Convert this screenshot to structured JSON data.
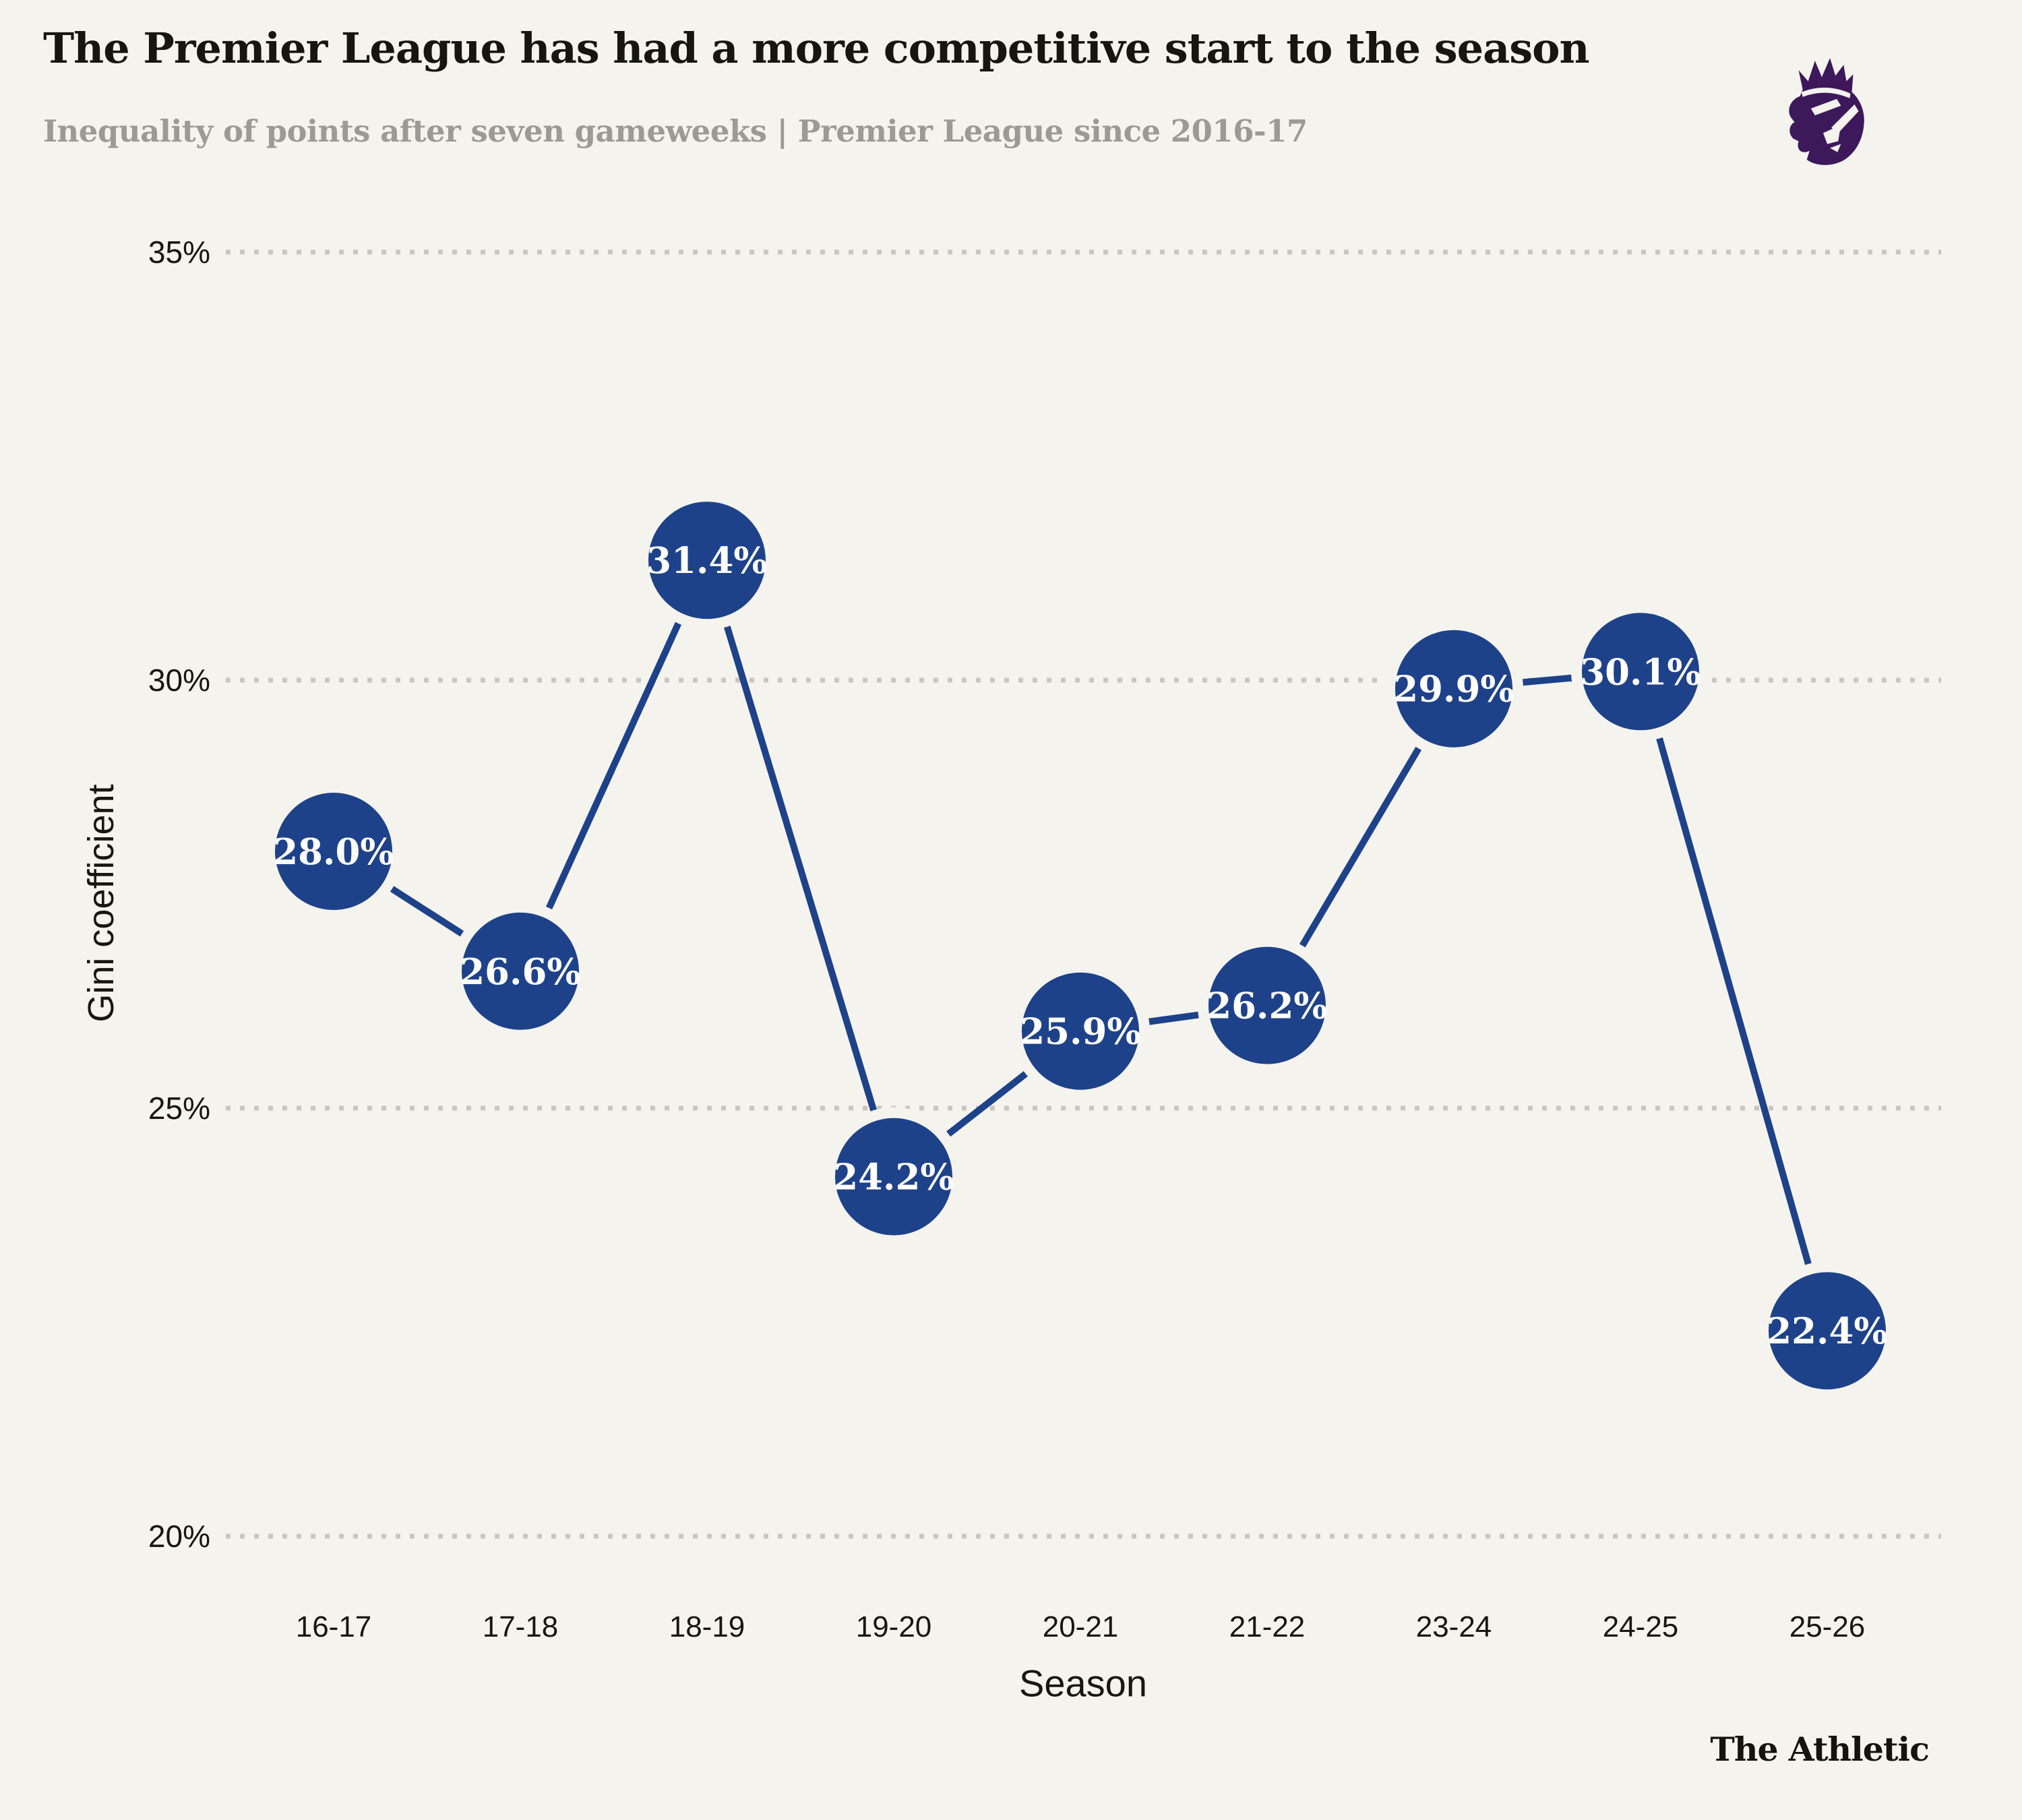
{
  "header": {
    "title": "The Premier League has had a more competitive start to the season",
    "subtitle": "Inequality of points after seven gameweeks | Premier League since 2016-17"
  },
  "branding": {
    "wordmark": "The Athletic",
    "logo_name": "premier-league-lion"
  },
  "colors": {
    "background": "#f4f3ee",
    "accent_blue": "#1e4289",
    "gridline": "#c8c6bf",
    "axis_text": "#17160f",
    "point_label_text": "#ffffff",
    "title_text": "#16150f",
    "subtitle_text": "#9b9a93",
    "pl_purple": "#3d195b"
  },
  "chart_data": {
    "type": "line",
    "title": "The Premier League has had a more competitive start to the season",
    "subtitle": "Inequality of points after seven gameweeks | Premier League since 2016-17",
    "categories": [
      "16-17",
      "17-18",
      "18-19",
      "19-20",
      "20-21",
      "21-22",
      "23-24",
      "24-25",
      "25-26"
    ],
    "values": [
      28.0,
      26.6,
      31.4,
      24.2,
      25.9,
      26.2,
      29.9,
      30.1,
      22.4
    ],
    "point_labels": [
      "28.0%",
      "26.6%",
      "31.4%",
      "24.2%",
      "25.9%",
      "26.2%",
      "29.9%",
      "30.1%",
      "22.4%"
    ],
    "xlabel": "Season",
    "ylabel": "Gini coefficient",
    "yticks": [
      {
        "value": 35,
        "label": "35%"
      },
      {
        "value": 30,
        "label": "30%"
      },
      {
        "value": 25,
        "label": "25%"
      },
      {
        "value": 20,
        "label": "20%"
      }
    ],
    "ylim": [
      20,
      35
    ],
    "grid": "horizontal-dotted",
    "legend": "none"
  }
}
